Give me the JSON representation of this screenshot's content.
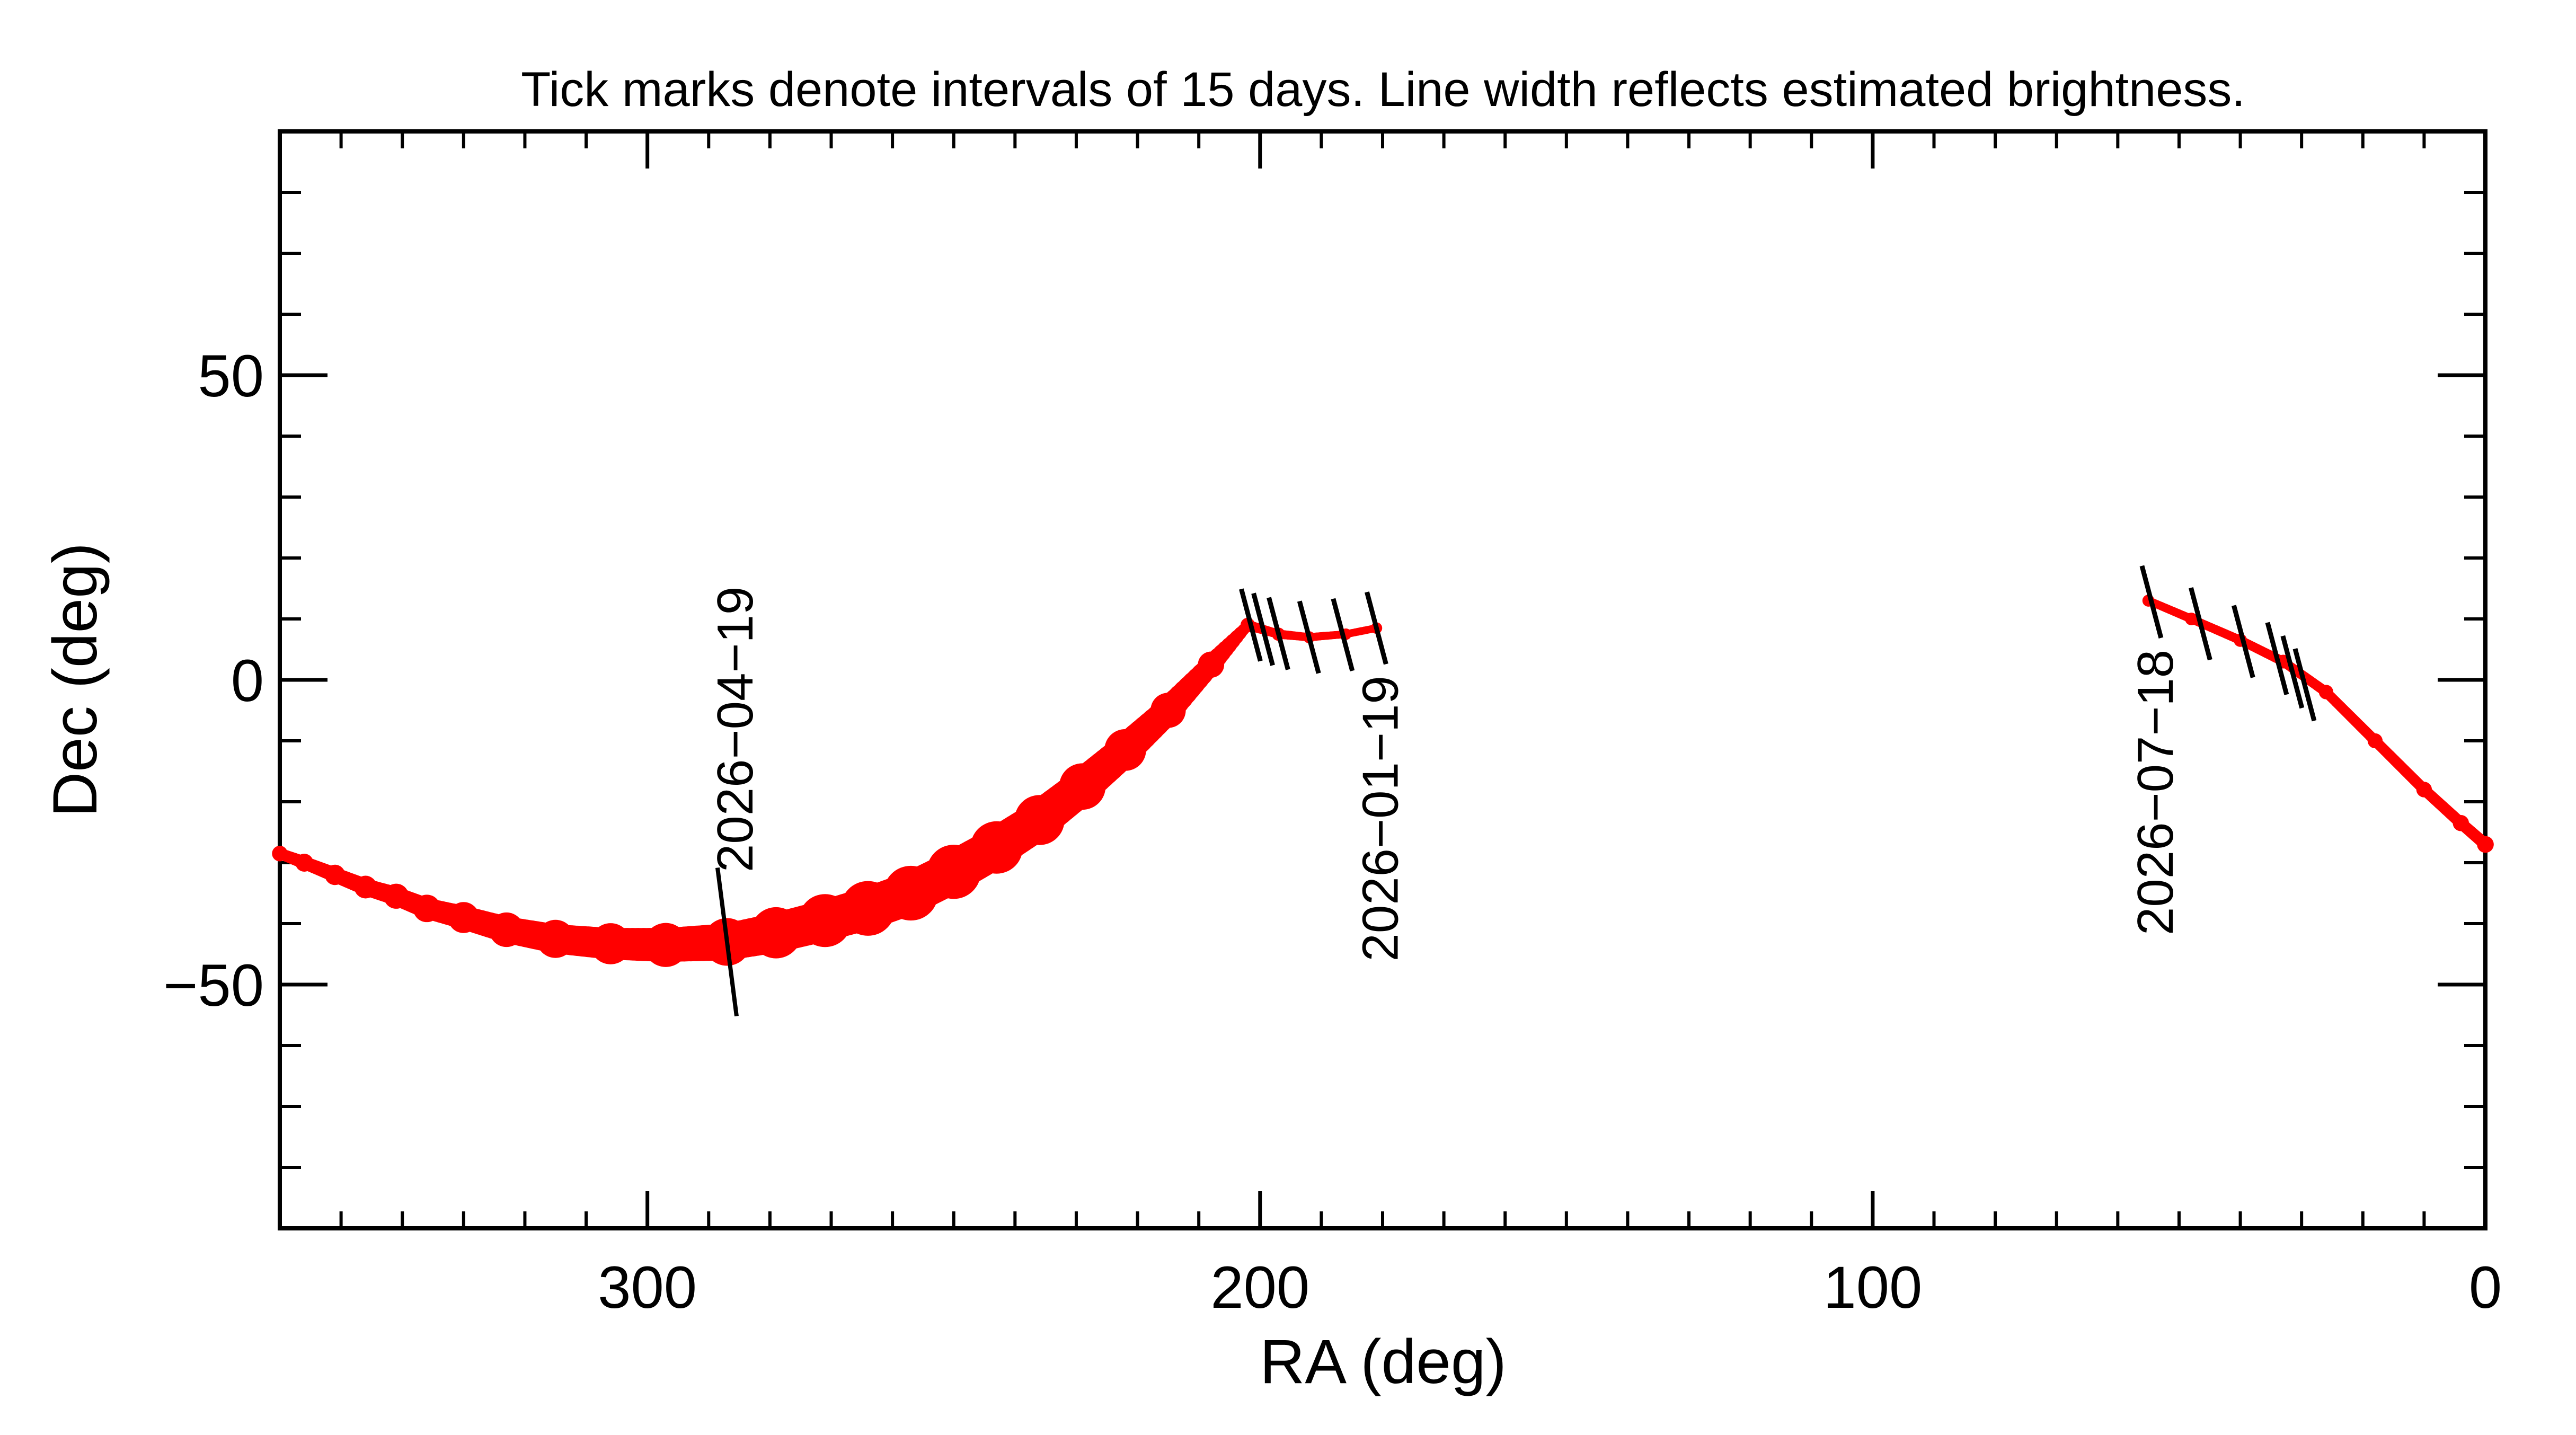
{
  "chart_data": {
    "type": "line",
    "title": "Tick marks denote intervals of 15 days.  Line width reflects estimated brightness.",
    "xlabel": "RA (deg)",
    "ylabel": "Dec (deg)",
    "xlim": [
      360,
      0
    ],
    "ylim": [
      -90,
      90
    ],
    "x_ticks": [
      300,
      200,
      100,
      0
    ],
    "y_ticks": [
      50,
      0,
      -50
    ],
    "x_tick_labels": [
      "300",
      "200",
      "100",
      "0"
    ],
    "y_tick_labels": [
      "50",
      "0",
      "−50"
    ],
    "grid": false,
    "series": [
      {
        "points": [
          {
            "x": 360,
            "y": -28.5,
            "brightness": 0.12
          },
          {
            "x": 356,
            "y": -30,
            "brightness": 0.16
          },
          {
            "x": 351,
            "y": -32,
            "brightness": 0.2
          },
          {
            "x": 346,
            "y": -34,
            "brightness": 0.24
          },
          {
            "x": 341,
            "y": -35.5,
            "brightness": 0.28
          },
          {
            "x": 336,
            "y": -37.5,
            "brightness": 0.32
          },
          {
            "x": 330,
            "y": -39,
            "brightness": 0.38
          },
          {
            "x": 323,
            "y": -41,
            "brightness": 0.44
          },
          {
            "x": 315,
            "y": -42.5,
            "brightness": 0.5
          },
          {
            "x": 306,
            "y": -43.3,
            "brightness": 0.55
          },
          {
            "x": 297,
            "y": -43.5,
            "brightness": 0.6
          },
          {
            "x": 287,
            "y": -43,
            "brightness": 0.66
          },
          {
            "x": 279,
            "y": -41.5,
            "brightness": 0.72
          },
          {
            "x": 271,
            "y": -39.5,
            "brightness": 0.75
          },
          {
            "x": 264,
            "y": -37.5,
            "brightness": 0.78
          },
          {
            "x": 257,
            "y": -35,
            "brightness": 0.78
          },
          {
            "x": 250,
            "y": -31.5,
            "brightness": 0.77
          },
          {
            "x": 243,
            "y": -27.5,
            "brightness": 0.74
          },
          {
            "x": 236,
            "y": -23,
            "brightness": 0.7
          },
          {
            "x": 229,
            "y": -17.5,
            "brightness": 0.64
          },
          {
            "x": 222,
            "y": -11.5,
            "brightness": 0.56
          },
          {
            "x": 215,
            "y": -5,
            "brightness": 0.45
          },
          {
            "x": 208,
            "y": 2.5,
            "brightness": 0.3
          },
          {
            "x": 202,
            "y": 9,
            "brightness": 0.1
          }
        ]
      },
      {
        "points": [
          {
            "x": 202,
            "y": 9,
            "brightness": 0.1
          },
          {
            "x": 197,
            "y": 7.5,
            "brightness": 0.08
          },
          {
            "x": 192,
            "y": 7,
            "brightness": 0.06
          },
          {
            "x": 186,
            "y": 7.5,
            "brightness": 0.05
          },
          {
            "x": 181,
            "y": 8.5,
            "brightness": 0.05
          }
        ]
      },
      {
        "points": [
          {
            "x": 55,
            "y": 13,
            "brightness": 0.06
          },
          {
            "x": 48,
            "y": 10,
            "brightness": 0.07
          },
          {
            "x": 40,
            "y": 6.5,
            "brightness": 0.08
          },
          {
            "x": 33,
            "y": 3,
            "brightness": 0.09
          },
          {
            "x": 26,
            "y": -2,
            "brightness": 0.1
          },
          {
            "x": 18,
            "y": -10,
            "brightness": 0.11
          },
          {
            "x": 10,
            "y": -18,
            "brightness": 0.12
          },
          {
            "x": 4,
            "y": -23.5,
            "brightness": 0.13
          },
          {
            "x": 0,
            "y": -27,
            "brightness": 0.14
          }
        ]
      }
    ],
    "tick_marks": [
      {
        "x": 201.5,
        "y": 9
      },
      {
        "x": 199.5,
        "y": 8.3
      },
      {
        "x": 197,
        "y": 7.6
      },
      {
        "x": 192,
        "y": 7
      },
      {
        "x": 186.5,
        "y": 7.4
      },
      {
        "x": 181,
        "y": 8.5
      },
      {
        "x": 54.5,
        "y": 12.8
      },
      {
        "x": 46.5,
        "y": 9.2
      },
      {
        "x": 39.5,
        "y": 6.3
      },
      {
        "x": 34,
        "y": 3.5
      },
      {
        "x": 31.5,
        "y": 1.3
      },
      {
        "x": 29.5,
        "y": -0.8
      }
    ],
    "annotations": [
      {
        "text": "2026−04−19",
        "x": 287,
        "y": -42,
        "marker_x": 287,
        "marker_y": -43
      },
      {
        "text": "2026−01−19",
        "x": 181,
        "y": 8.5
      },
      {
        "text": "2026−07−18",
        "x": 54.5,
        "y": 12.8
      }
    ],
    "colors": {
      "track": "#ff0000",
      "ticks": "#000000",
      "axes": "#000000"
    }
  }
}
